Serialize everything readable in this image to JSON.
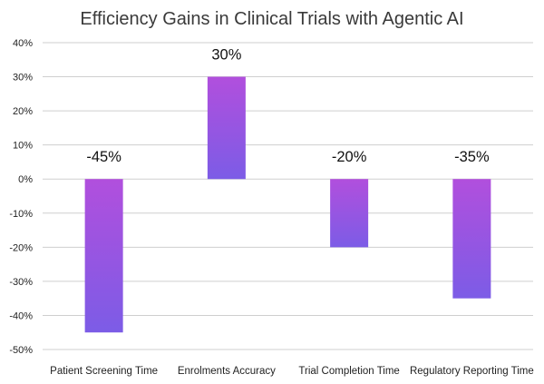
{
  "chart_data": {
    "type": "bar",
    "title": "Efficiency Gains in Clinical Trials with Agentic AI",
    "xlabel": "",
    "ylabel": "",
    "categories": [
      "Patient Screening Time",
      "Enrolments Accuracy",
      "Trial Completion Time",
      "Regulatory Reporting Time"
    ],
    "values": [
      -45,
      30,
      -20,
      -35
    ],
    "data_labels": [
      "-45%",
      "30%",
      "-20%",
      "-35%"
    ],
    "ylim": [
      -50,
      40
    ],
    "yticks": [
      40,
      30,
      20,
      10,
      0,
      -10,
      -20,
      -30,
      -40,
      -50
    ],
    "ytick_labels": [
      "40%",
      "30%",
      "20%",
      "10%",
      "0%",
      "-10%",
      "-20%",
      "-30%",
      "-40%",
      "-50%"
    ],
    "grid": true,
    "bar_gradient": [
      "#b14fdd",
      "#7c5ce6"
    ]
  }
}
